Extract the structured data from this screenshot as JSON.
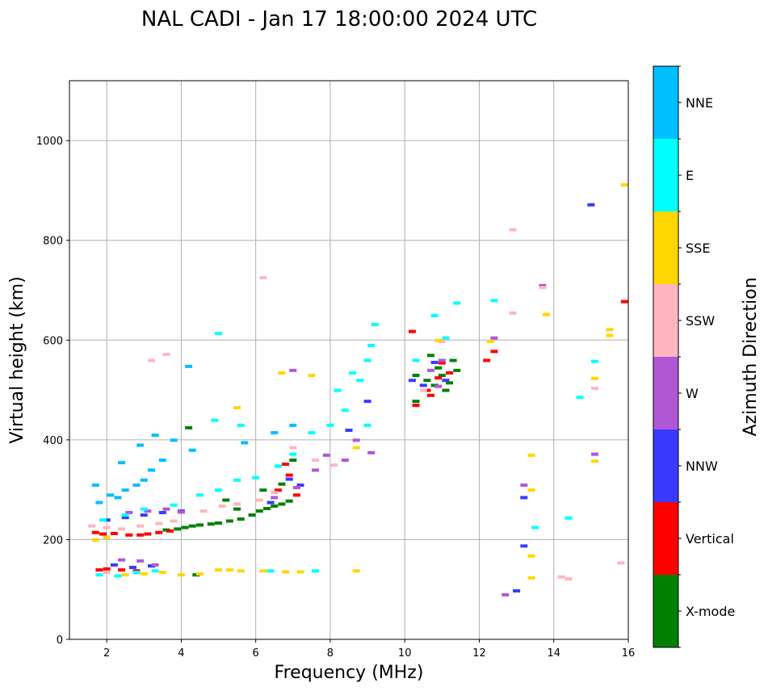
{
  "chart_data": {
    "type": "scatter",
    "title": "NAL CADI - Jan 17 18:00:00 2024 UTC",
    "xlabel": "Frequency (MHz)",
    "ylabel": "Virtual height (km)",
    "xlim": [
      1,
      16
    ],
    "ylim": [
      0,
      1120
    ],
    "xticks": [
      2,
      4,
      6,
      8,
      10,
      12,
      14,
      16
    ],
    "yticks": [
      0,
      200,
      400,
      600,
      800,
      1000
    ],
    "grid": true,
    "colorbar": {
      "title": "Azimuth Direction",
      "categories": [
        {
          "name": "X-mode",
          "color": "#008000"
        },
        {
          "name": "Vertical",
          "color": "#ff0000"
        },
        {
          "name": "NNW",
          "color": "#3a3aff"
        },
        {
          "name": "W",
          "color": "#b157d6"
        },
        {
          "name": "SSW",
          "color": "#ffb6c1"
        },
        {
          "name": "SSE",
          "color": "#ffd700"
        },
        {
          "name": "E",
          "color": "#00ffff"
        },
        {
          "name": "NNE",
          "color": "#00bfff"
        }
      ]
    },
    "series": [
      {
        "name": "X-mode",
        "points": [
          [
            4.1,
            225
          ],
          [
            4.3,
            228
          ],
          [
            4.5,
            230
          ],
          [
            4.8,
            232
          ],
          [
            5.0,
            234
          ],
          [
            5.3,
            238
          ],
          [
            5.6,
            242
          ],
          [
            5.9,
            250
          ],
          [
            6.1,
            258
          ],
          [
            6.3,
            263
          ],
          [
            6.5,
            268
          ],
          [
            6.7,
            272
          ],
          [
            6.9,
            278
          ],
          [
            6.2,
            300
          ],
          [
            6.7,
            312
          ],
          [
            7.0,
            360
          ],
          [
            3.6,
            220
          ],
          [
            3.9,
            222
          ],
          [
            4.4,
            130
          ],
          [
            4.2,
            425
          ],
          [
            5.2,
            280
          ],
          [
            5.5,
            262
          ],
          [
            10.3,
            478
          ],
          [
            10.3,
            530
          ],
          [
            10.6,
            520
          ],
          [
            10.8,
            510
          ],
          [
            10.9,
            545
          ],
          [
            11.0,
            530
          ],
          [
            11.2,
            515
          ],
          [
            11.3,
            560
          ],
          [
            11.1,
            500
          ],
          [
            10.7,
            570
          ],
          [
            11.4,
            540
          ]
        ]
      },
      {
        "name": "Vertical",
        "points": [
          [
            1.7,
            215
          ],
          [
            1.9,
            212
          ],
          [
            2.2,
            213
          ],
          [
            2.6,
            210
          ],
          [
            2.9,
            210
          ],
          [
            3.1,
            212
          ],
          [
            3.4,
            215
          ],
          [
            3.7,
            218
          ],
          [
            1.8,
            140
          ],
          [
            2.0,
            142
          ],
          [
            2.4,
            140
          ],
          [
            2.8,
            138
          ],
          [
            6.6,
            300
          ],
          [
            6.9,
            330
          ],
          [
            7.1,
            290
          ],
          [
            6.8,
            352
          ],
          [
            10.3,
            470
          ],
          [
            10.6,
            500
          ],
          [
            10.9,
            525
          ],
          [
            11.2,
            535
          ],
          [
            12.2,
            560
          ],
          [
            12.4,
            578
          ],
          [
            15.9,
            678
          ],
          [
            10.2,
            618
          ],
          [
            10.7,
            490
          ],
          [
            11.0,
            555
          ]
        ]
      },
      {
        "name": "NNW",
        "points": [
          [
            2.0,
            240
          ],
          [
            2.5,
            245
          ],
          [
            3.0,
            250
          ],
          [
            3.5,
            255
          ],
          [
            4.0,
            258
          ],
          [
            2.2,
            150
          ],
          [
            2.7,
            145
          ],
          [
            3.2,
            148
          ],
          [
            6.4,
            275
          ],
          [
            6.9,
            322
          ],
          [
            7.2,
            310
          ],
          [
            8.5,
            420
          ],
          [
            9.0,
            478
          ],
          [
            13.2,
            285
          ],
          [
            13.2,
            188
          ],
          [
            13.0,
            98
          ],
          [
            15.0,
            872
          ],
          [
            10.2,
            520
          ],
          [
            10.5,
            510
          ],
          [
            11.1,
            520
          ],
          [
            10.8,
            556
          ]
        ]
      },
      {
        "name": "W",
        "points": [
          [
            2.6,
            255
          ],
          [
            3.1,
            258
          ],
          [
            3.6,
            262
          ],
          [
            4.0,
            256
          ],
          [
            2.4,
            160
          ],
          [
            2.9,
            158
          ],
          [
            3.3,
            150
          ],
          [
            6.5,
            285
          ],
          [
            7.1,
            305
          ],
          [
            7.6,
            340
          ],
          [
            7.9,
            370
          ],
          [
            8.4,
            360
          ],
          [
            9.1,
            375
          ],
          [
            8.7,
            400
          ],
          [
            12.4,
            605
          ],
          [
            13.2,
            310
          ],
          [
            12.7,
            90
          ],
          [
            15.1,
            372
          ],
          [
            13.7,
            710
          ],
          [
            10.7,
            540
          ],
          [
            11.0,
            560
          ],
          [
            10.9,
            508
          ],
          [
            7.0,
            540
          ]
        ]
      },
      {
        "name": "SSW",
        "points": [
          [
            1.6,
            228
          ],
          [
            2.0,
            225
          ],
          [
            2.4,
            222
          ],
          [
            2.9,
            228
          ],
          [
            3.4,
            233
          ],
          [
            3.8,
            238
          ],
          [
            4.6,
            258
          ],
          [
            5.1,
            268
          ],
          [
            5.5,
            272
          ],
          [
            6.1,
            280
          ],
          [
            6.5,
            295
          ],
          [
            7.0,
            385
          ],
          [
            7.6,
            360
          ],
          [
            8.1,
            350
          ],
          [
            12.9,
            822
          ],
          [
            12.9,
            655
          ],
          [
            13.7,
            706
          ],
          [
            14.2,
            126
          ],
          [
            14.4,
            122
          ],
          [
            15.1,
            504
          ],
          [
            15.8,
            154
          ],
          [
            10.5,
            500
          ],
          [
            11.0,
            598
          ],
          [
            2.0,
            135
          ],
          [
            3.2,
            560
          ],
          [
            3.6,
            572
          ],
          [
            6.2,
            726
          ]
        ]
      },
      {
        "name": "SSE",
        "points": [
          [
            1.7,
            200
          ],
          [
            2.0,
            205
          ],
          [
            2.5,
            130
          ],
          [
            3.0,
            132
          ],
          [
            3.5,
            135
          ],
          [
            4.0,
            130
          ],
          [
            4.5,
            132
          ],
          [
            5.0,
            140
          ],
          [
            5.3,
            140
          ],
          [
            5.6,
            138
          ],
          [
            6.2,
            138
          ],
          [
            6.8,
            136
          ],
          [
            7.2,
            136
          ],
          [
            8.7,
            138
          ],
          [
            5.5,
            465
          ],
          [
            6.7,
            535
          ],
          [
            7.5,
            530
          ],
          [
            12.3,
            598
          ],
          [
            13.4,
            370
          ],
          [
            13.4,
            300
          ],
          [
            13.4,
            168
          ],
          [
            13.4,
            124
          ],
          [
            13.8,
            652
          ],
          [
            15.1,
            524
          ],
          [
            15.1,
            358
          ],
          [
            15.5,
            610
          ],
          [
            15.5,
            622
          ],
          [
            15.9,
            912
          ],
          [
            8.7,
            385
          ],
          [
            10.9,
            600
          ]
        ]
      },
      {
        "name": "E",
        "points": [
          [
            1.8,
            130
          ],
          [
            2.3,
            128
          ],
          [
            2.8,
            135
          ],
          [
            3.3,
            138
          ],
          [
            6.4,
            138
          ],
          [
            7.6,
            138
          ],
          [
            1.9,
            240
          ],
          [
            2.5,
            250
          ],
          [
            3.0,
            262
          ],
          [
            3.8,
            270
          ],
          [
            4.5,
            290
          ],
          [
            5.0,
            300
          ],
          [
            5.5,
            320
          ],
          [
            6.0,
            325
          ],
          [
            6.6,
            348
          ],
          [
            7.0,
            372
          ],
          [
            7.5,
            415
          ],
          [
            8.0,
            430
          ],
          [
            8.2,
            500
          ],
          [
            8.6,
            535
          ],
          [
            9.1,
            590
          ],
          [
            9.2,
            632
          ],
          [
            9.0,
            560
          ],
          [
            8.4,
            460
          ],
          [
            9.0,
            430
          ],
          [
            8.8,
            520
          ],
          [
            10.3,
            560
          ],
          [
            10.8,
            650
          ],
          [
            11.1,
            605
          ],
          [
            11.4,
            675
          ],
          [
            12.4,
            680
          ],
          [
            13.5,
            225
          ],
          [
            14.4,
            244
          ],
          [
            14.7,
            486
          ],
          [
            15.1,
            558
          ],
          [
            5.0,
            614
          ],
          [
            4.9,
            440
          ],
          [
            5.6,
            430
          ]
        ]
      },
      {
        "name": "NNE",
        "points": [
          [
            1.7,
            310
          ],
          [
            1.8,
            275
          ],
          [
            2.1,
            290
          ],
          [
            2.3,
            285
          ],
          [
            2.5,
            300
          ],
          [
            2.8,
            310
          ],
          [
            3.0,
            320
          ],
          [
            3.2,
            340
          ],
          [
            3.5,
            360
          ],
          [
            2.4,
            355
          ],
          [
            2.9,
            390
          ],
          [
            3.3,
            410
          ],
          [
            4.2,
            548
          ],
          [
            3.8,
            400
          ],
          [
            4.3,
            380
          ],
          [
            5.7,
            395
          ],
          [
            6.5,
            415
          ],
          [
            7.0,
            430
          ]
        ]
      }
    ]
  }
}
